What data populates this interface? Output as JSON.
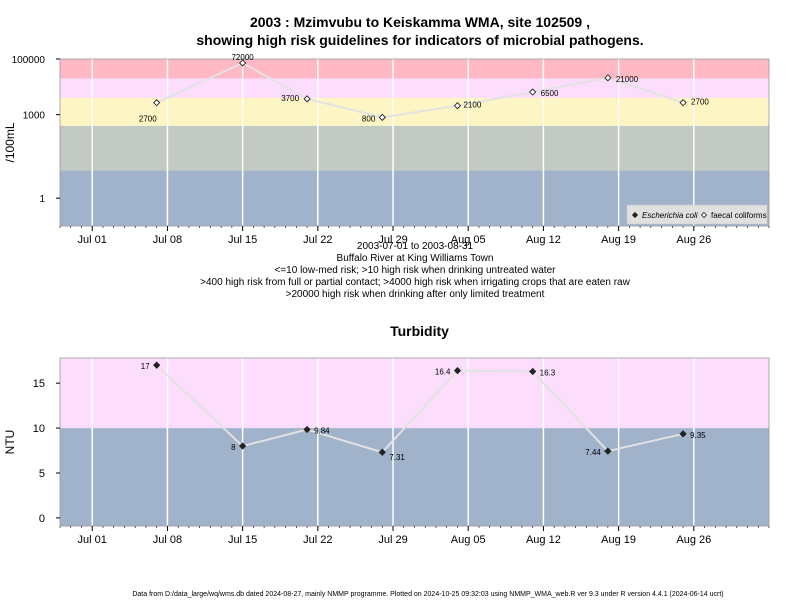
{
  "page": {
    "title_line1": "2003 : Mzimvubu to Keiskamma WMA, site 102509 ,",
    "title_line2": "showing high risk guidelines for indicators of microbial pathogens.",
    "subtitle_lines": [
      "2003-07-01 to 2003-08-31",
      "Buffalo River at King Williams Town",
      "<=10 low-med risk; >10 high risk when drinking untreated water",
      ">400 high risk from full or partial contact; >4000 high risk when irrigating crops that are eaten raw",
      ">20000 high risk when drinking after only limited treatment"
    ],
    "footer": "Data from D:/data_large/wq/wms.db dated 2024-08-27, mainly NMMP programme. Plotted on 2024-10-25 09:32:03 using NMMP_WMA_web.R ver 9.3 under R version 4.4.1 (2024-06-14 ucrt)"
  },
  "chart_data": [
    {
      "type": "line",
      "title": "",
      "ylabel": "/100mL",
      "yscale": "log",
      "ylim": [
        0.1,
        100000
      ],
      "xlim": [
        "2003-06-28",
        "2003-09-02"
      ],
      "x_ticks": [
        "Jul 01",
        "Jul 08",
        "Jul 15",
        "Jul 22",
        "Jul 29",
        "Aug 05",
        "Aug 12",
        "Aug 19",
        "Aug 26"
      ],
      "x_tick_dates": [
        "2003-07-01",
        "2003-07-08",
        "2003-07-15",
        "2003-07-22",
        "2003-07-29",
        "2003-08-05",
        "2003-08-12",
        "2003-08-19",
        "2003-08-26"
      ],
      "y_ticks": [
        1,
        1000,
        100000
      ],
      "y_tick_labels": [
        "1",
        "1000",
        "100000"
      ],
      "bands": [
        {
          "from": 0.1,
          "to": 10,
          "color": "#a1b2cb"
        },
        {
          "from": 10,
          "to": 400,
          "color": "#c3cac3"
        },
        {
          "from": 400,
          "to": 4000,
          "color": "#fdf5c4"
        },
        {
          "from": 4000,
          "to": 20000,
          "color": "#fcdefc"
        },
        {
          "from": 20000,
          "to": 100000,
          "color": "#ffb8c4"
        }
      ],
      "series": [
        {
          "name": "faecal coliforms",
          "marker": "open-diamond",
          "line_color": "#e2e2e2",
          "x": [
            "2003-07-07",
            "2003-07-15",
            "2003-07-21",
            "2003-07-28",
            "2003-08-04",
            "2003-08-11",
            "2003-08-18",
            "2003-08-25"
          ],
          "values": [
            2700,
            72000,
            3700,
            800,
            2100,
            6500,
            21000,
            2700
          ],
          "labels": [
            "2700",
            "72000",
            "3700",
            "800",
            "2100",
            "6500",
            "21000",
            "2700"
          ]
        }
      ],
      "legend": {
        "position": "bottom-right",
        "entries": [
          {
            "name": "Escherichia coli",
            "marker": "filled-diamond",
            "italic": true
          },
          {
            "name": "faecal coliforms",
            "marker": "open-diamond",
            "italic": false
          }
        ]
      }
    },
    {
      "type": "line",
      "title": "Turbidity",
      "ylabel": "NTU",
      "ylim": [
        -0.9,
        17.8
      ],
      "xlim": [
        "2003-06-28",
        "2003-09-02"
      ],
      "x_ticks": [
        "Jul 01",
        "Jul 08",
        "Jul 15",
        "Jul 22",
        "Jul 29",
        "Aug 05",
        "Aug 12",
        "Aug 19",
        "Aug 26"
      ],
      "x_tick_dates": [
        "2003-07-01",
        "2003-07-08",
        "2003-07-15",
        "2003-07-22",
        "2003-07-29",
        "2003-08-05",
        "2003-08-12",
        "2003-08-19",
        "2003-08-26"
      ],
      "y_ticks": [
        0,
        5,
        10,
        15
      ],
      "y_tick_labels": [
        "0",
        "5",
        "10",
        "15"
      ],
      "bands": [
        {
          "from": -0.9,
          "to": 10,
          "color": "#a1b2cb"
        },
        {
          "from": 10,
          "to": 17.8,
          "color": "#fcdefc"
        }
      ],
      "series": [
        {
          "name": "",
          "marker": "filled-diamond",
          "line_color": "#e2e2e2",
          "x": [
            "2003-07-07",
            "2003-07-15",
            "2003-07-21",
            "2003-07-28",
            "2003-08-04",
            "2003-08-11",
            "2003-08-18",
            "2003-08-25"
          ],
          "values": [
            17,
            8,
            9.84,
            7.31,
            16.4,
            16.3,
            7.44,
            9.35
          ],
          "labels": [
            "17",
            "8",
            "9.84",
            "7.31",
            "16.4",
            "16.3",
            "7.44",
            "9.35"
          ]
        }
      ]
    }
  ]
}
